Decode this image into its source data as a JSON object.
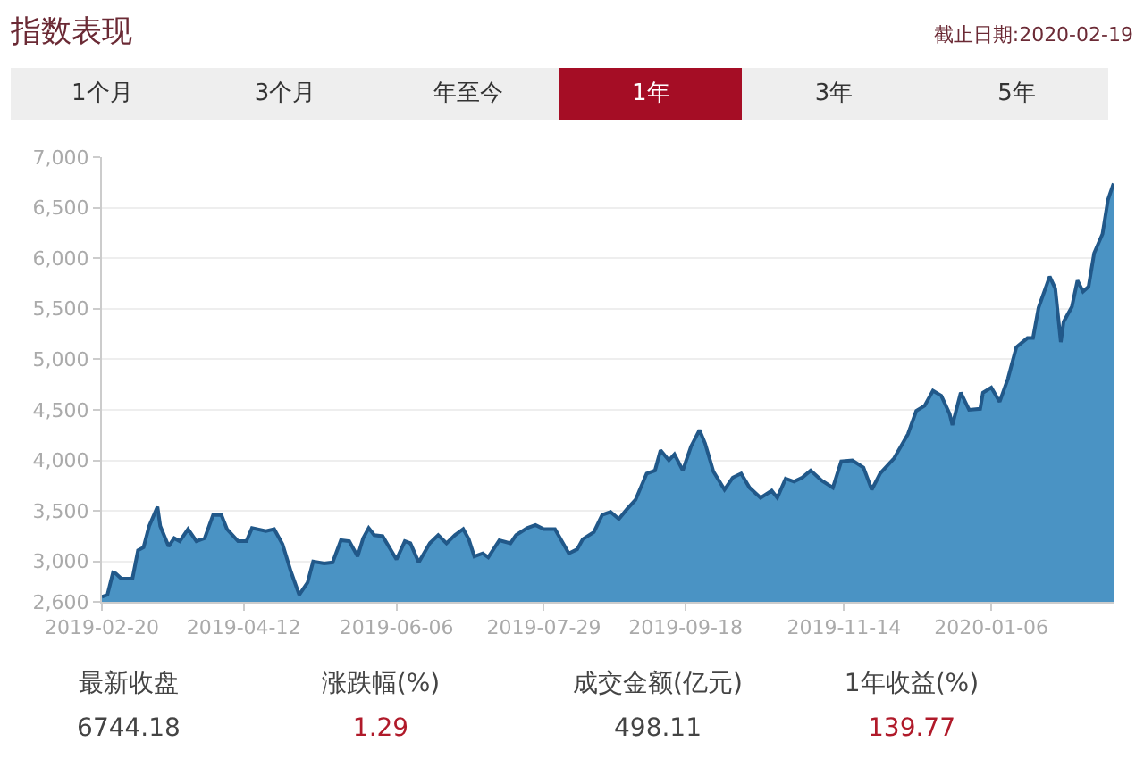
{
  "chart_data": {
    "type": "area",
    "title": "指数表现",
    "subtitle": "截止日期:2020-02-19",
    "annotations": [
      "1个月",
      "3个月",
      "年至今",
      "1年",
      "3年",
      "5年",
      "最新收盘",
      "6744.18",
      "涨跌幅(%)",
      "1.29",
      "成交金额(亿元)",
      "498.11",
      "1年收益(%)",
      "139.77"
    ],
    "series": [
      {
        "color": "#4a93c4",
        "x": [
          "2019-02-20",
          "2019-02-22",
          "2019-02-24",
          "2019-02-25",
          "2019-02-27",
          "2019-03-03",
          "2019-03-05",
          "2019-03-07",
          "2019-03-09",
          "2019-03-12",
          "2019-03-13",
          "2019-03-16",
          "2019-03-18",
          "2019-03-20",
          "2019-03-23",
          "2019-03-26",
          "2019-03-29",
          "2019-04-01",
          "2019-04-04",
          "2019-04-06",
          "2019-04-10",
          "2019-04-13",
          "2019-04-15",
          "2019-04-20",
          "2019-04-23",
          "2019-04-26",
          "2019-04-29",
          "2019-05-02",
          "2019-05-05",
          "2019-05-07",
          "2019-05-11",
          "2019-05-14",
          "2019-05-17",
          "2019-05-20",
          "2019-05-23",
          "2019-05-25",
          "2019-05-27",
          "2019-05-29",
          "2019-06-01",
          "2019-06-06",
          "2019-06-09",
          "2019-06-11",
          "2019-06-14",
          "2019-06-18",
          "2019-06-21",
          "2019-06-24",
          "2019-06-27",
          "2019-06-30",
          "2019-07-02",
          "2019-07-04",
          "2019-07-07",
          "2019-07-09",
          "2019-07-13",
          "2019-07-17",
          "2019-07-19",
          "2019-07-23",
          "2019-07-26",
          "2019-07-29",
          "2019-08-02",
          "2019-08-07",
          "2019-08-10",
          "2019-08-12",
          "2019-08-16",
          "2019-08-19",
          "2019-08-22",
          "2019-08-25",
          "2019-08-28",
          "2019-08-31",
          "2019-09-04",
          "2019-09-07",
          "2019-09-09",
          "2019-09-12",
          "2019-09-14",
          "2019-09-17",
          "2019-09-20",
          "2019-09-23",
          "2019-09-25",
          "2019-09-28",
          "2019-10-02",
          "2019-10-05",
          "2019-10-08",
          "2019-10-11",
          "2019-10-15",
          "2019-10-19",
          "2019-10-21",
          "2019-10-24",
          "2019-10-27",
          "2019-10-30",
          "2019-11-02",
          "2019-11-06",
          "2019-11-10",
          "2019-11-13",
          "2019-11-17",
          "2019-11-21",
          "2019-11-24",
          "2019-11-27",
          "2019-12-02",
          "2019-12-07",
          "2019-12-10",
          "2019-12-13",
          "2019-12-16",
          "2019-12-19",
          "2019-12-22",
          "2019-12-23",
          "2019-12-26",
          "2019-12-29",
          "2020-01-02",
          "2020-01-03",
          "2020-01-06",
          "2020-01-09",
          "2020-01-12",
          "2020-01-15",
          "2020-01-19",
          "2020-01-21",
          "2020-01-23",
          "2020-01-27",
          "2020-01-29",
          "2020-01-31",
          "2020-02-01",
          "2020-02-04",
          "2020-02-06",
          "2020-02-08",
          "2020-02-10",
          "2020-02-12",
          "2020-02-15",
          "2020-02-17",
          "2020-02-19"
        ],
        "values": [
          2650,
          2670,
          2890,
          2880,
          2830,
          2830,
          3110,
          3140,
          3350,
          3540,
          3350,
          3150,
          3230,
          3200,
          3320,
          3200,
          3230,
          3460,
          3460,
          3320,
          3200,
          3200,
          3330,
          3300,
          3320,
          3170,
          2900,
          2670,
          2790,
          3000,
          2980,
          2990,
          3210,
          3200,
          3050,
          3230,
          3330,
          3260,
          3250,
          3020,
          3200,
          3180,
          2990,
          3180,
          3260,
          3180,
          3260,
          3320,
          3220,
          3050,
          3080,
          3040,
          3210,
          3180,
          3260,
          3330,
          3360,
          3320,
          3320,
          3080,
          3120,
          3220,
          3290,
          3460,
          3490,
          3420,
          3520,
          3610,
          3870,
          3900,
          4100,
          4000,
          4060,
          3900,
          4140,
          4300,
          4170,
          3890,
          3710,
          3830,
          3870,
          3730,
          3630,
          3700,
          3630,
          3820,
          3790,
          3830,
          3900,
          3800,
          3730,
          3990,
          4000,
          3930,
          3710,
          3870,
          4020,
          4260,
          4490,
          4540,
          4690,
          4640,
          4460,
          4350,
          4670,
          4500,
          4510,
          4670,
          4720,
          4580,
          4810,
          5120,
          5210,
          5210,
          5510,
          5820,
          5700,
          5170,
          5370,
          5520,
          5780,
          5670,
          5720,
          6050,
          6240,
          6580,
          6740
        ]
      }
    ],
    "xlim": [
      "2019-02-20",
      "2020-02-19"
    ],
    "xticks": [
      "2019-02-20",
      "2019-04-12",
      "2019-06-06",
      "2019-07-29",
      "2019-09-18",
      "2019-11-14",
      "2020-01-06"
    ],
    "ylim": [
      2600,
      7000
    ],
    "yticks": [
      {
        "value": 2600,
        "label": "2,600"
      },
      {
        "value": 3000,
        "label": "3,000"
      },
      {
        "value": 3500,
        "label": "3,500"
      },
      {
        "value": 4000,
        "label": "4,000"
      },
      {
        "value": 4500,
        "label": "4,500"
      },
      {
        "value": 5000,
        "label": "5,000"
      },
      {
        "value": 5500,
        "label": "5,500"
      },
      {
        "value": 6000,
        "label": "6,000"
      },
      {
        "value": 6500,
        "label": "6,500"
      },
      {
        "value": 7000,
        "label": "7,000"
      }
    ],
    "grid": "y"
  }
}
